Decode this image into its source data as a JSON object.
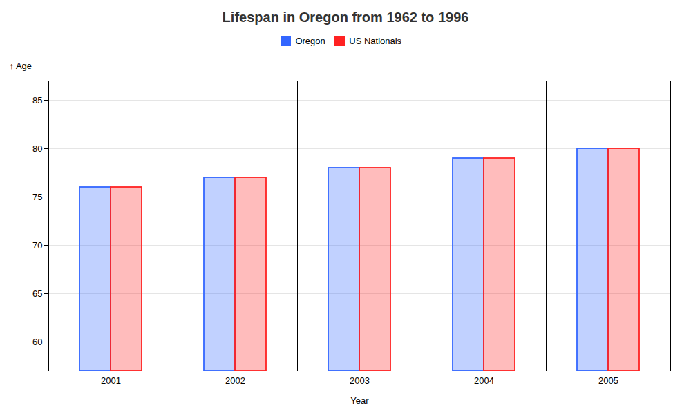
{
  "chart_data": {
    "type": "bar",
    "title": "Lifespan in Oregon from 1962 to 1996",
    "xlabel": "Year",
    "ylabel": "Age",
    "categories": [
      "2001",
      "2002",
      "2003",
      "2004",
      "2005"
    ],
    "series": [
      {
        "name": "Oregon",
        "color": "#3366ff",
        "values": [
          76,
          77,
          78,
          79,
          80
        ]
      },
      {
        "name": "US Nationals",
        "color": "#ff2222",
        "values": [
          76,
          77,
          78,
          79,
          80
        ]
      }
    ],
    "ylim": [
      57,
      87
    ],
    "yticks": [
      60,
      65,
      70,
      75,
      80,
      85
    ],
    "grid": true,
    "legend": "top"
  }
}
